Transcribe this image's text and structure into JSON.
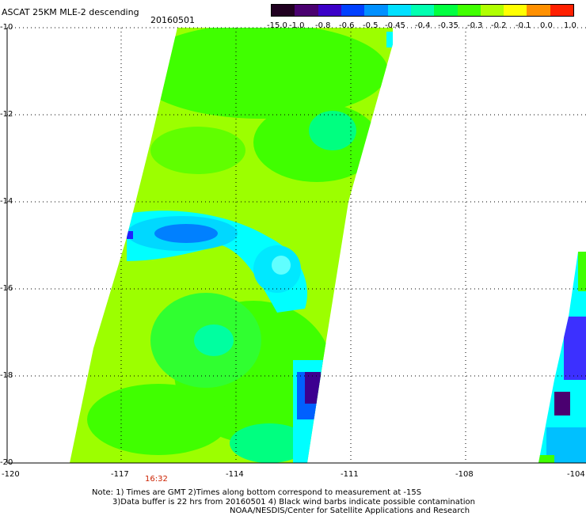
{
  "header": {
    "title": "ASCAT 25KM MLE-2 descending",
    "date": "20160501"
  },
  "colorbar": {
    "labels": [
      "-15.0",
      "-1.0",
      "-0.8",
      "-0.6",
      "-0.5",
      "-0.45",
      "-0.4",
      "-0.35",
      "-0.3",
      "-0.2",
      "-0.1",
      "0.0",
      "1.0"
    ],
    "colors": [
      "#200020",
      "#4a0070",
      "#3c00c8",
      "#0040ff",
      "#0090ff",
      "#00e0ff",
      "#00ffb0",
      "#00ff40",
      "#40ff00",
      "#b0ff00",
      "#ffff00",
      "#ff9000",
      "#ff2000"
    ]
  },
  "axes": {
    "lat_labels": [
      "-10",
      "-12",
      "-14",
      "-16",
      "-18",
      "-20"
    ],
    "lon_labels": [
      "-120",
      "-117",
      "-114",
      "-111",
      "-108",
      "-104"
    ]
  },
  "swath_time": "16:32",
  "notes": {
    "line1": "Note: 1) Times are GMT 2)Times along bottom correspond to measurement at -15S",
    "line2": "3)Data buffer is 22 hrs from 20160501 4) Black wind barbs indicate possible contamination",
    "line3": "NOAA/NESDIS/Center for Satellite Applications and Research"
  },
  "map_colors": {
    "lime": "#a0ff00",
    "green": "#40ff00",
    "aqua": "#00ff80",
    "cyan": "#00ffff",
    "blue": "#0080ff",
    "purple": "#3c0090"
  }
}
